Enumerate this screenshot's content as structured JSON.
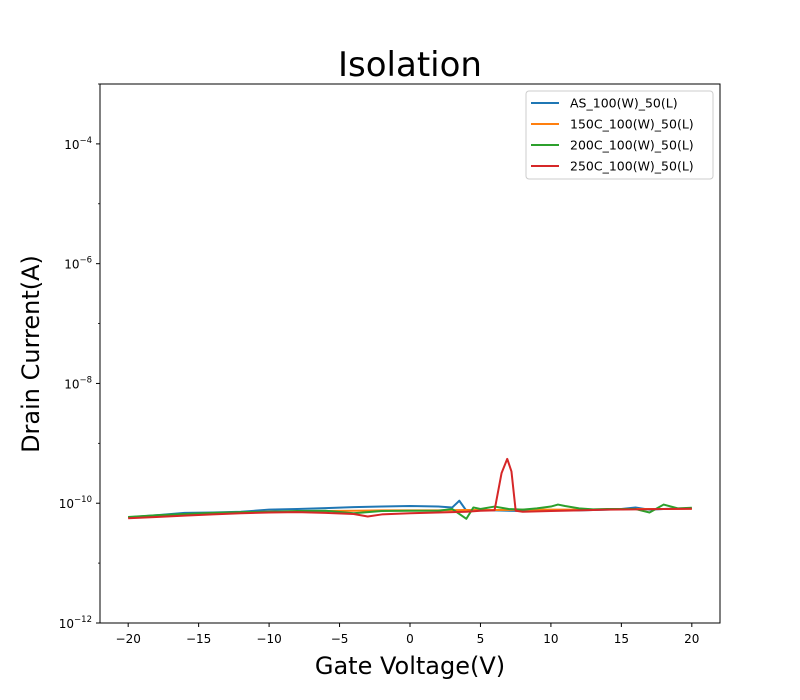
{
  "chart_data": {
    "type": "line",
    "title": "Isolation",
    "xlabel": "Gate Voltage(V)",
    "ylabel": "Drain Current(A)",
    "xlim": [
      -22,
      22
    ],
    "ylim": [
      1e-12,
      0.001
    ],
    "yscale": "log",
    "xticks": [
      -20,
      -15,
      -10,
      -5,
      0,
      5,
      10,
      15,
      20
    ],
    "xtick_labels": [
      "−20",
      "−15",
      "−10",
      "−5",
      "0",
      "5",
      "10",
      "15",
      "20"
    ],
    "yticks": [
      1e-12,
      1e-10,
      1e-08,
      1e-06,
      0.0001
    ],
    "ytick_labels": [
      {
        "base": "10",
        "exp": "−12"
      },
      {
        "base": "10",
        "exp": "−10"
      },
      {
        "base": "10",
        "exp": "−8"
      },
      {
        "base": "10",
        "exp": "−6"
      },
      {
        "base": "10",
        "exp": "−4"
      }
    ],
    "grid": false,
    "legend_position": "top-right",
    "series": [
      {
        "name": "AS_100(W)_50(L)",
        "color": "#1f77b4",
        "points": [
          [
            -20,
            5.8e-11
          ],
          [
            -18,
            6.3e-11
          ],
          [
            -16,
            6.9e-11
          ],
          [
            -14,
            7e-11
          ],
          [
            -12,
            7.2e-11
          ],
          [
            -10,
            7.8e-11
          ],
          [
            -8,
            8e-11
          ],
          [
            -6,
            8.3e-11
          ],
          [
            -4,
            8.6e-11
          ],
          [
            -2,
            8.8e-11
          ],
          [
            0,
            9e-11
          ],
          [
            2,
            8.8e-11
          ],
          [
            3,
            8.5e-11
          ],
          [
            3.5,
            1.1e-10
          ],
          [
            4,
            7.5e-11
          ],
          [
            5,
            7.8e-11
          ],
          [
            6,
            7.6e-11
          ],
          [
            8,
            7.4e-11
          ],
          [
            10,
            7.6e-11
          ],
          [
            12,
            7.6e-11
          ],
          [
            14,
            7.8e-11
          ],
          [
            15,
            8e-11
          ],
          [
            16,
            8.5e-11
          ],
          [
            17,
            7.8e-11
          ],
          [
            18,
            8e-11
          ],
          [
            20,
            8.2e-11
          ]
        ]
      },
      {
        "name": "150C_100(W)_50(L)",
        "color": "#ff7f0e",
        "points": [
          [
            -20,
            5.8e-11
          ],
          [
            -18,
            6.2e-11
          ],
          [
            -16,
            6.5e-11
          ],
          [
            -14,
            6.8e-11
          ],
          [
            -12,
            7e-11
          ],
          [
            -10,
            7.2e-11
          ],
          [
            -8,
            7.3e-11
          ],
          [
            -6,
            7.4e-11
          ],
          [
            -4,
            7.5e-11
          ],
          [
            -2,
            7.6e-11
          ],
          [
            0,
            7.6e-11
          ],
          [
            2,
            7.6e-11
          ],
          [
            4,
            7.7e-11
          ],
          [
            6,
            7.7e-11
          ],
          [
            8,
            7.8e-11
          ],
          [
            10,
            7.8e-11
          ],
          [
            12,
            7.8e-11
          ],
          [
            14,
            7.9e-11
          ],
          [
            16,
            8e-11
          ],
          [
            18,
            8e-11
          ],
          [
            20,
            8.1e-11
          ]
        ]
      },
      {
        "name": "200C_100(W)_50(L)",
        "color": "#2ca02c",
        "points": [
          [
            -20,
            5.9e-11
          ],
          [
            -18,
            6.3e-11
          ],
          [
            -16,
            6.6e-11
          ],
          [
            -14,
            6.9e-11
          ],
          [
            -12,
            7.1e-11
          ],
          [
            -10,
            7.2e-11
          ],
          [
            -8,
            7.4e-11
          ],
          [
            -6,
            7.5e-11
          ],
          [
            -4,
            6.8e-11
          ],
          [
            -2,
            7.4e-11
          ],
          [
            0,
            7.5e-11
          ],
          [
            2,
            7.5e-11
          ],
          [
            3,
            8e-11
          ],
          [
            4,
            5.5e-11
          ],
          [
            4.5,
            8.5e-11
          ],
          [
            5,
            8e-11
          ],
          [
            6,
            8.8e-11
          ],
          [
            7,
            8e-11
          ],
          [
            8,
            7.8e-11
          ],
          [
            9,
            8.2e-11
          ],
          [
            10,
            8.8e-11
          ],
          [
            10.5,
            9.5e-11
          ],
          [
            11,
            9e-11
          ],
          [
            12,
            8.2e-11
          ],
          [
            13,
            7.9e-11
          ],
          [
            14,
            8e-11
          ],
          [
            16,
            8e-11
          ],
          [
            17,
            7e-11
          ],
          [
            18,
            9.5e-11
          ],
          [
            19,
            8.2e-11
          ],
          [
            20,
            8.4e-11
          ]
        ]
      },
      {
        "name": "250C_100(W)_50(L)",
        "color": "#d62728",
        "points": [
          [
            -20,
            5.6e-11
          ],
          [
            -18,
            5.9e-11
          ],
          [
            -16,
            6.2e-11
          ],
          [
            -14,
            6.5e-11
          ],
          [
            -12,
            6.8e-11
          ],
          [
            -10,
            7e-11
          ],
          [
            -8,
            7.1e-11
          ],
          [
            -6,
            6.9e-11
          ],
          [
            -4,
            6.6e-11
          ],
          [
            -3,
            6e-11
          ],
          [
            -2,
            6.5e-11
          ],
          [
            0,
            6.8e-11
          ],
          [
            2,
            7e-11
          ],
          [
            4,
            7.2e-11
          ],
          [
            5,
            7.5e-11
          ],
          [
            6,
            7.6e-11
          ],
          [
            6.5,
            3.2e-10
          ],
          [
            6.9,
            5.5e-10
          ],
          [
            7.2,
            3.4e-10
          ],
          [
            7.5,
            7.5e-11
          ],
          [
            8,
            7.2e-11
          ],
          [
            10,
            7.4e-11
          ],
          [
            12,
            7.6e-11
          ],
          [
            14,
            7.8e-11
          ],
          [
            16,
            7.9e-11
          ],
          [
            18,
            8e-11
          ],
          [
            20,
            8.1e-11
          ]
        ]
      }
    ]
  }
}
